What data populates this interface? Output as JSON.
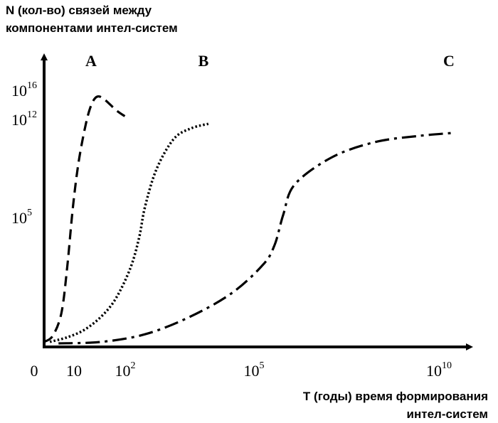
{
  "chart_data": {
    "type": "line",
    "title": "",
    "ylabel": "N (кол-во) связей между компонентами интел-систем",
    "ylabel_lines": [
      "N (кол-во) связей между",
      "компонентами интел-систем"
    ],
    "xlabel": "T (годы) время формирования интел-систем",
    "xlabel_lines": [
      "T (годы) время формирования",
      "интел-систем"
    ],
    "x_ticks": [
      {
        "base": "0",
        "exp": ""
      },
      {
        "base": "10",
        "exp": ""
      },
      {
        "base": "10",
        "exp": "2"
      },
      {
        "base": "10",
        "exp": "5"
      },
      {
        "base": "10",
        "exp": "10"
      }
    ],
    "y_ticks": [
      {
        "base": "10",
        "exp": "16"
      },
      {
        "base": "10",
        "exp": "12"
      },
      {
        "base": "10",
        "exp": "5"
      }
    ],
    "grid": false,
    "legend": "none",
    "series": [
      {
        "name": "A",
        "style": "dashed",
        "points": [
          [
            0.0,
            0.1
          ],
          [
            0.3,
            0.5
          ],
          [
            0.6,
            2.0
          ],
          [
            0.8,
            5.0
          ],
          [
            1.0,
            9.0
          ],
          [
            1.2,
            12.0
          ],
          [
            1.45,
            14.5
          ],
          [
            1.65,
            15.8
          ],
          [
            1.85,
            16.3
          ],
          [
            2.1,
            16.1
          ],
          [
            2.5,
            15.4
          ],
          [
            2.8,
            15.0
          ]
        ]
      },
      {
        "name": "B",
        "style": "dotted",
        "points": [
          [
            0.2,
            0.1
          ],
          [
            0.8,
            0.4
          ],
          [
            1.4,
            0.9
          ],
          [
            2.0,
            1.8
          ],
          [
            2.5,
            3.0
          ],
          [
            3.0,
            5.0
          ],
          [
            3.3,
            7.0
          ],
          [
            3.5,
            9.0
          ],
          [
            3.9,
            11.5
          ],
          [
            4.5,
            13.5
          ],
          [
            5.1,
            14.2
          ],
          [
            5.7,
            14.5
          ]
        ]
      },
      {
        "name": "C",
        "style": "dashdot",
        "points": [
          [
            0.5,
            0.0
          ],
          [
            2.0,
            0.1
          ],
          [
            3.5,
            0.6
          ],
          [
            5.0,
            1.7
          ],
          [
            6.5,
            3.3
          ],
          [
            7.6,
            5.2
          ],
          [
            8.0,
            6.5
          ],
          [
            8.3,
            8.5
          ],
          [
            8.7,
            10.5
          ],
          [
            10.0,
            12.3
          ],
          [
            11.5,
            13.3
          ],
          [
            13.0,
            13.7
          ],
          [
            14.2,
            13.9
          ]
        ]
      }
    ]
  }
}
